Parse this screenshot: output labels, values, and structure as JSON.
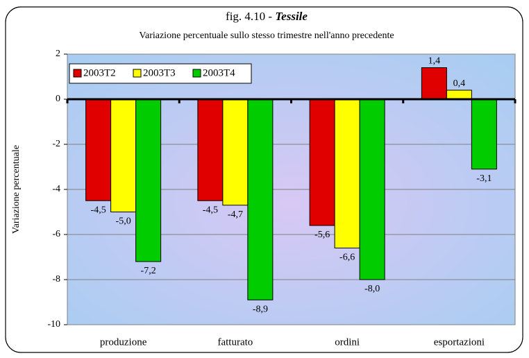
{
  "chart_data": {
    "type": "bar",
    "title": {
      "text": "fig. 4.10 - ",
      "emphasis": "Tessile"
    },
    "subtitle": "Variazione percentuale sullo stesso trimestre nell'anno precedente",
    "y_label": "Variazione percentuale",
    "categories": [
      "produzione",
      "fatturato",
      "ordini",
      "esportazioni"
    ],
    "series": [
      {
        "name": "2003T2",
        "color": "#e00000",
        "values": [
          -4.5,
          -4.5,
          -5.6,
          1.4
        ],
        "value_labels": [
          "-4,5",
          "-4,5",
          "-5,6",
          "1,4"
        ]
      },
      {
        "name": "2003T3",
        "color": "#ffff00",
        "values": [
          -5.0,
          -4.7,
          -6.6,
          0.4
        ],
        "value_labels": [
          "-5,0",
          "-4,7",
          "-6,6",
          "0,4"
        ]
      },
      {
        "name": "2003T4",
        "color": "#00cc00",
        "values": [
          -7.2,
          -8.9,
          -8.0,
          -3.1
        ],
        "value_labels": [
          "-7,2",
          "-8,9",
          "-8,0",
          "-3,1"
        ]
      }
    ],
    "ylim": [
      -10,
      2
    ],
    "yticks": [
      -10,
      -8,
      -6,
      -4,
      -2,
      0,
      2
    ],
    "grid": true,
    "legend": "upper left"
  }
}
